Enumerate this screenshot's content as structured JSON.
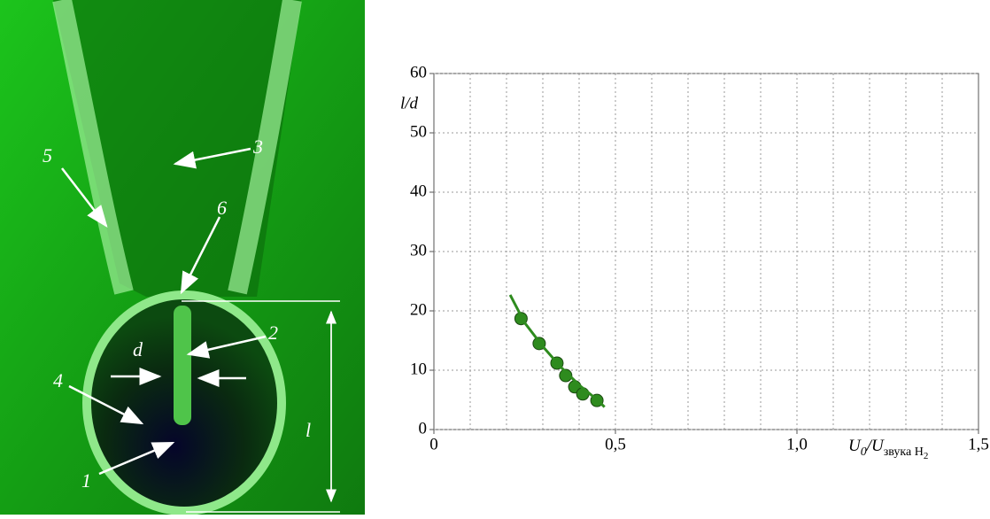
{
  "photo_labels": [
    "5",
    "3",
    "6",
    "2",
    "d",
    "4",
    "1",
    "l"
  ],
  "chart_data": {
    "type": "scatter",
    "ylabel": "l/d",
    "xlabel": {
      "main1": "U",
      "sub1": "0",
      "main2": "/U",
      "sub2": "звука H",
      "sub3": "2"
    },
    "xlim": [
      0,
      1.5
    ],
    "ylim": [
      0,
      60
    ],
    "xticks": [
      0,
      {
        "value": 0.5,
        "label": "0,5"
      },
      {
        "value": 1.0,
        "label": "1,0"
      },
      {
        "value": 1.5,
        "label": "1,5"
      }
    ],
    "yticks": [
      0,
      10,
      20,
      30,
      40,
      50,
      60
    ],
    "xgrid": [
      0.1,
      0.2,
      0.3,
      0.4,
      0.5,
      0.6,
      0.7,
      0.8,
      0.9,
      1.0,
      1.1,
      1.2,
      1.3,
      1.4
    ],
    "grid": true,
    "series": [
      {
        "style": "markers",
        "color": "#2e8b1e",
        "x": [
          0.24,
          0.29,
          0.339,
          0.363,
          0.388,
          0.41,
          0.449
        ],
        "values": [
          18.7,
          14.5,
          11.2,
          9.1,
          7.2,
          6.0,
          4.9
        ]
      },
      {
        "style": "line",
        "color": "#2e8b1e",
        "x": [
          0.21,
          0.25,
          0.3,
          0.35,
          0.4,
          0.45,
          0.47
        ],
        "values": [
          22.7,
          18,
          14,
          10.5,
          7.5,
          5,
          3.8
        ]
      }
    ]
  }
}
